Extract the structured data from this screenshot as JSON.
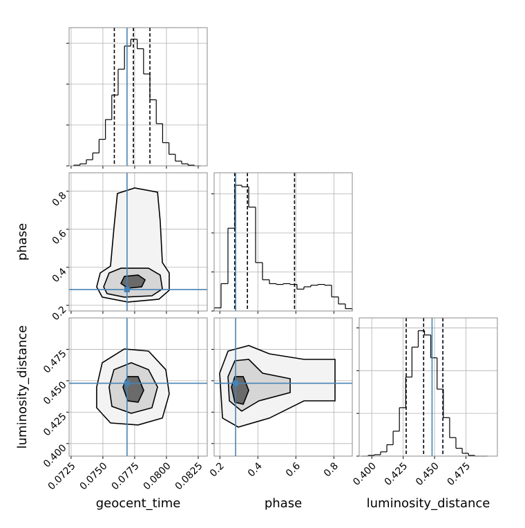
{
  "chart_data": {
    "type": "corner",
    "parameters": [
      "geocent_time",
      "phase",
      "luminosity_distance"
    ],
    "ranges": [
      [
        0.07234,
        0.08321
      ],
      [
        0.17,
        0.897
      ],
      [
        0.39,
        0.5
      ]
    ],
    "ticks": [
      [
        0.0725,
        {
          "value": 0.075,
          "label": "0.0750"
        },
        0.0775,
        {
          "value": 0.08,
          "label": "0.0800"
        },
        0.0825
      ],
      [
        0.2,
        0.4,
        0.6,
        0.8
      ],
      [
        {
          "value": 0.4,
          "label": "0.400"
        },
        0.425,
        {
          "value": 0.45,
          "label": "0.450"
        },
        0.475
      ]
    ],
    "truths": [
      0.0769,
      0.283,
      0.448
    ],
    "truth_color": "#4682b4",
    "line_color": "#000000",
    "grid": true,
    "histograms": [
      {
        "bins": [
          0.0727,
          0.0732,
          0.0737,
          0.0742,
          0.0747,
          0.0752,
          0.0757,
          0.0762,
          0.0767,
          0.0772,
          0.0777,
          0.0782,
          0.0787,
          0.0792,
          0.0797,
          0.0802,
          0.0807,
          0.0812,
          0.0817,
          0.0822,
          0.0827
        ],
        "counts": [
          1,
          3,
          9,
          19,
          39,
          68,
          104,
          142,
          176,
          186,
          172,
          135,
          97,
          62,
          34,
          17,
          7,
          3,
          1,
          0
        ],
        "ylim": [
          0,
          203
        ],
        "yticks": [
          0,
          60,
          120,
          180
        ],
        "quantiles": [
          0.0759,
          0.0774,
          0.0787
        ]
      },
      {
        "bins": [
          0.17,
          0.2064,
          0.2427,
          0.2791,
          0.3154,
          0.3518,
          0.3881,
          0.4245,
          0.4608,
          0.4972,
          0.5335,
          0.5699,
          0.6062,
          0.6426,
          0.6789,
          0.7153,
          0.7516,
          0.788,
          0.8243,
          0.8607,
          0.897
        ],
        "counts": [
          4,
          35,
          106,
          161,
          159,
          133,
          62,
          40,
          35,
          34,
          35,
          34,
          28,
          31,
          33,
          34,
          33,
          18,
          9,
          3
        ],
        "ylim": [
          0,
          177
        ],
        "yticks": [
          0,
          50,
          100,
          150
        ],
        "quantiles": [
          0.278,
          0.345,
          0.593
        ]
      },
      {
        "bins": [
          0.392,
          0.397,
          0.402,
          0.407,
          0.412,
          0.417,
          0.422,
          0.427,
          0.432,
          0.437,
          0.442,
          0.447,
          0.452,
          0.457,
          0.462,
          0.467,
          0.472,
          0.477,
          0.482,
          0.487,
          0.492
        ],
        "counts": [
          0,
          1,
          2,
          6,
          16,
          35,
          68,
          111,
          153,
          176,
          170,
          138,
          94,
          54,
          26,
          11,
          4,
          1,
          0,
          0
        ],
        "ylim": [
          0,
          194
        ],
        "yticks": [
          0,
          60,
          120,
          180
        ],
        "quantiles": [
          0.4274,
          0.4413,
          0.4566
        ]
      }
    ],
    "contours": [
      {
        "x_param": 0,
        "y_param": 1,
        "levels": [
          {
            "x": [
              0.07451,
              0.07479,
              0.0756,
              0.07587,
              0.07614,
              0.0775,
              0.0793,
              0.07951,
              0.07968,
              0.08022,
              0.08022,
              0.07941,
              0.07696,
              0.07495
            ],
            "y": [
              0.297,
              0.37,
              0.406,
              0.606,
              0.788,
              0.817,
              0.795,
              0.643,
              0.425,
              0.37,
              0.279,
              0.232,
              0.217,
              0.243
            ]
          },
          {
            "x": [
              0.07506,
              0.07549,
              0.07642,
              0.07859,
              0.07951,
              0.07968,
              0.07886,
              0.07669,
              0.07533
            ],
            "y": [
              0.297,
              0.37,
              0.395,
              0.395,
              0.359,
              0.286,
              0.25,
              0.243,
              0.261
            ]
          },
          {
            "x": [
              0.07642,
              0.07669,
              0.07777,
              0.07832,
              0.07805,
              0.07696
            ],
            "y": [
              0.315,
              0.352,
              0.359,
              0.334,
              0.297,
              0.29
            ]
          }
        ]
      },
      {
        "x_param": 0,
        "y_param": 2,
        "levels": [
          {
            "x": [
              0.07451,
              0.07495,
              0.07669,
              0.07859,
              0.07995,
              0.08022,
              0.07968,
              0.07777,
              0.0756,
              0.07451
            ],
            "y": [
              0.445,
              0.4643,
              0.4753,
              0.4736,
              0.4588,
              0.4395,
              0.4203,
              0.4148,
              0.4164,
              0.4285
            ]
          },
          {
            "x": [
              0.07549,
              0.07587,
              0.07723,
              0.07859,
              0.0793,
              0.07886,
              0.07723,
              0.07571
            ],
            "y": [
              0.445,
              0.4588,
              0.4643,
              0.4588,
              0.445,
              0.4285,
              0.4241,
              0.4296
            ]
          },
          {
            "x": [
              0.07658,
              0.07696,
              0.07777,
              0.07821,
              0.07777,
              0.07696
            ],
            "y": [
              0.445,
              0.4533,
              0.4533,
              0.4423,
              0.4329,
              0.434
            ]
          }
        ]
      },
      {
        "x_param": 1,
        "y_param": 2,
        "levels": [
          {
            "x": [
              0.199,
              0.243,
              0.352,
              0.461,
              0.643,
              0.806,
              0.806,
              0.643,
              0.461,
              0.297,
              0.214
            ],
            "y": [
              0.456,
              0.4736,
              0.478,
              0.4714,
              0.467,
              0.467,
              0.434,
              0.434,
              0.4203,
              0.4131,
              0.4203
            ]
          },
          {
            "x": [
              0.243,
              0.279,
              0.352,
              0.425,
              0.57,
              0.57,
              0.406,
              0.315,
              0.25
            ],
            "y": [
              0.4533,
              0.4659,
              0.467,
              0.456,
              0.4516,
              0.4406,
              0.434,
              0.4258,
              0.434
            ]
          },
          {
            "x": [
              0.261,
              0.279,
              0.323,
              0.352,
              0.323,
              0.279
            ],
            "y": [
              0.445,
              0.4533,
              0.4533,
              0.4423,
              0.4313,
              0.4329
            ]
          }
        ]
      }
    ]
  }
}
